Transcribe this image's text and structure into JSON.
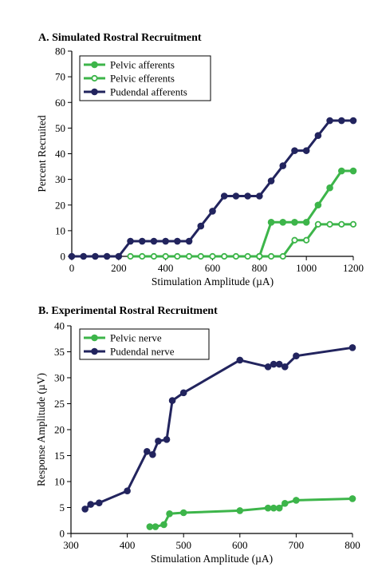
{
  "colors": {
    "green": "#3db54a",
    "navy": "#22245e",
    "axis": "#000000"
  },
  "chart_data": [
    {
      "type": "line",
      "title": "A. Simulated Rostral Recruitment",
      "xlabel": "Stimulation Amplitude (µA)",
      "ylabel": "Percent Recruited",
      "xlim": [
        0,
        1200
      ],
      "ylim": [
        0,
        80
      ],
      "xticks": [
        0,
        200,
        400,
        600,
        800,
        1000,
        1200
      ],
      "yticks": [
        0,
        10,
        20,
        30,
        40,
        50,
        60,
        70,
        80
      ],
      "legend_position": "top-left",
      "grid": false,
      "series": [
        {
          "name": "Pelvic afferents",
          "color": "#3db54a",
          "marker": "filled-circle",
          "points": [
            [
              800,
              0
            ],
            [
              850,
              13.3
            ],
            [
              900,
              13.3
            ],
            [
              950,
              13.3
            ],
            [
              1000,
              13.3
            ],
            [
              1050,
              20
            ],
            [
              1100,
              26.7
            ],
            [
              1150,
              33.3
            ],
            [
              1200,
              33.3
            ]
          ]
        },
        {
          "name": "Pelvic efferents",
          "color": "#3db54a",
          "marker": "open-circle",
          "points": [
            [
              250,
              0
            ],
            [
              300,
              0
            ],
            [
              350,
              0
            ],
            [
              400,
              0
            ],
            [
              450,
              0
            ],
            [
              500,
              0
            ],
            [
              550,
              0
            ],
            [
              600,
              0
            ],
            [
              650,
              0
            ],
            [
              700,
              0
            ],
            [
              750,
              0
            ],
            [
              800,
              0
            ],
            [
              850,
              0
            ],
            [
              900,
              0
            ],
            [
              950,
              6.3
            ],
            [
              1000,
              6.3
            ],
            [
              1050,
              12.5
            ],
            [
              1100,
              12.5
            ],
            [
              1150,
              12.5
            ],
            [
              1200,
              12.5
            ]
          ]
        },
        {
          "name": "Pudendal afferents",
          "color": "#22245e",
          "marker": "filled-circle",
          "points": [
            [
              0,
              0
            ],
            [
              50,
              0
            ],
            [
              100,
              0
            ],
            [
              150,
              0
            ],
            [
              200,
              0
            ],
            [
              250,
              5.9
            ],
            [
              300,
              5.9
            ],
            [
              350,
              5.9
            ],
            [
              400,
              5.9
            ],
            [
              450,
              5.9
            ],
            [
              500,
              5.9
            ],
            [
              550,
              11.8
            ],
            [
              600,
              17.6
            ],
            [
              650,
              23.5
            ],
            [
              700,
              23.5
            ],
            [
              750,
              23.5
            ],
            [
              800,
              23.5
            ],
            [
              850,
              29.4
            ],
            [
              900,
              35.3
            ],
            [
              950,
              41.2
            ],
            [
              1000,
              41.2
            ],
            [
              1050,
              47.1
            ],
            [
              1100,
              52.9
            ],
            [
              1150,
              52.9
            ],
            [
              1200,
              52.9
            ]
          ]
        }
      ]
    },
    {
      "type": "line",
      "title": "B. Experimental Rostral Recruitment",
      "xlabel": "Stimulation Amplitude (µA)",
      "ylabel": "Response Amplitude (µV)",
      "xlim": [
        300,
        800
      ],
      "ylim": [
        0,
        40
      ],
      "xticks": [
        300,
        400,
        500,
        600,
        700,
        800
      ],
      "yticks": [
        0,
        5,
        10,
        15,
        20,
        25,
        30,
        35,
        40
      ],
      "legend_position": "top-left",
      "grid": false,
      "series": [
        {
          "name": "Pelvic nerve",
          "color": "#3db54a",
          "marker": "filled-circle",
          "points": [
            [
              440,
              1.3
            ],
            [
              450,
              1.3
            ],
            [
              465,
              1.7
            ],
            [
              475,
              3.8
            ],
            [
              500,
              4.0
            ],
            [
              600,
              4.4
            ],
            [
              650,
              4.9
            ],
            [
              660,
              4.9
            ],
            [
              670,
              4.9
            ],
            [
              680,
              5.8
            ],
            [
              700,
              6.4
            ],
            [
              800,
              6.7
            ]
          ]
        },
        {
          "name": "Pudendal nerve",
          "color": "#22245e",
          "marker": "filled-circle",
          "points": [
            [
              325,
              4.7
            ],
            [
              335,
              5.6
            ],
            [
              350,
              5.9
            ],
            [
              400,
              8.2
            ],
            [
              435,
              15.8
            ],
            [
              445,
              15.2
            ],
            [
              455,
              17.8
            ],
            [
              470,
              18.1
            ],
            [
              480,
              25.6
            ],
            [
              500,
              27.1
            ],
            [
              600,
              33.4
            ],
            [
              650,
              32.1
            ],
            [
              660,
              32.6
            ],
            [
              670,
              32.6
            ],
            [
              680,
              32.1
            ],
            [
              700,
              34.2
            ],
            [
              800,
              35.8
            ]
          ]
        }
      ]
    }
  ]
}
